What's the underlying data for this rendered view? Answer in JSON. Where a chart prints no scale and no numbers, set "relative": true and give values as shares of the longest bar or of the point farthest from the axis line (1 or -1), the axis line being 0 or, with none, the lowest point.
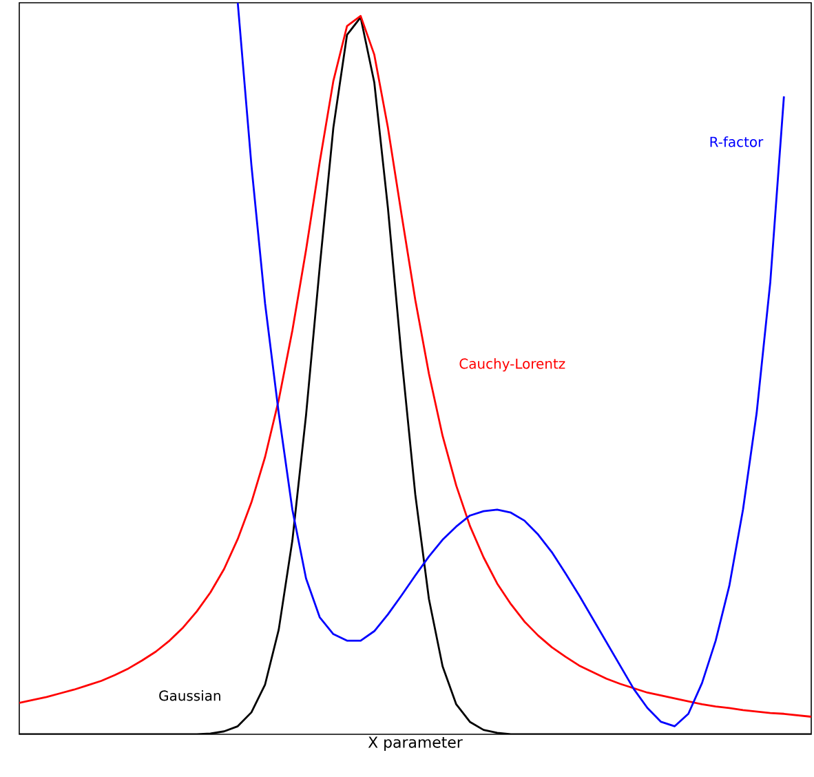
{
  "chart_data": {
    "type": "line",
    "relative": true,
    "xlabel": "X parameter",
    "categories": [
      null,
      null,
      null,
      null,
      null,
      null,
      null,
      null,
      null,
      null,
      null,
      null,
      null,
      null,
      null,
      null,
      null,
      null,
      null,
      null,
      null,
      null,
      null,
      null,
      null,
      null,
      null,
      null,
      null,
      null,
      null,
      null,
      null,
      null,
      null,
      null,
      null,
      null,
      null,
      null,
      null,
      null,
      null,
      null,
      null,
      null,
      null,
      null,
      null,
      null,
      null,
      null,
      null,
      null,
      null,
      null,
      null,
      null,
      null
    ],
    "series": [
      {
        "name": "Gaussian",
        "color": "#000000",
        "values": [
          0,
          0,
          0,
          0,
          0,
          0,
          0,
          0,
          0,
          0,
          0,
          0,
          0,
          0,
          0.001,
          0.004,
          0.011,
          0.03,
          0.068,
          0.143,
          0.265,
          0.436,
          0.638,
          0.829,
          0.956,
          0.98,
          0.891,
          0.719,
          0.515,
          0.328,
          0.185,
          0.093,
          0.041,
          0.017,
          0.006,
          0.002,
          0,
          0,
          0,
          0,
          0,
          0,
          0,
          0,
          0,
          0,
          0,
          0,
          0,
          0,
          0,
          0,
          0,
          0,
          0,
          0,
          0,
          0,
          0
        ]
      },
      {
        "name": "Cauchy-Lorentz",
        "color": "#ff0000",
        "values": [
          0.043,
          0.047,
          0.051,
          0.056,
          0.061,
          0.067,
          0.073,
          0.081,
          0.09,
          0.101,
          0.113,
          0.128,
          0.146,
          0.168,
          0.194,
          0.226,
          0.267,
          0.317,
          0.379,
          0.457,
          0.552,
          0.662,
          0.782,
          0.893,
          0.968,
          0.982,
          0.929,
          0.829,
          0.71,
          0.594,
          0.493,
          0.408,
          0.34,
          0.285,
          0.242,
          0.206,
          0.178,
          0.154,
          0.135,
          0.119,
          0.106,
          0.094,
          0.085,
          0.076,
          0.069,
          0.063,
          0.057,
          0.053,
          0.049,
          0.045,
          0.041,
          0.038,
          0.036,
          0.033,
          0.031,
          0.029,
          0.028,
          0.026,
          0.024
        ]
      },
      {
        "name": "R-factor",
        "color": "#0000ff",
        "values": [
          null,
          null,
          null,
          null,
          null,
          null,
          null,
          null,
          null,
          null,
          null,
          null,
          null,
          null,
          null,
          null,
          1.0,
          0.778,
          0.589,
          0.439,
          0.307,
          0.213,
          0.16,
          0.137,
          0.128,
          0.128,
          0.141,
          0.164,
          0.19,
          0.217,
          0.243,
          0.266,
          0.284,
          0.299,
          0.305,
          0.307,
          0.303,
          0.292,
          0.273,
          0.249,
          0.22,
          0.19,
          0.158,
          0.126,
          0.094,
          0.062,
          0.036,
          0.017,
          0.011,
          0.028,
          0.07,
          0.128,
          0.203,
          0.307,
          0.439,
          0.618,
          0.872,
          null,
          null
        ]
      }
    ]
  }
}
